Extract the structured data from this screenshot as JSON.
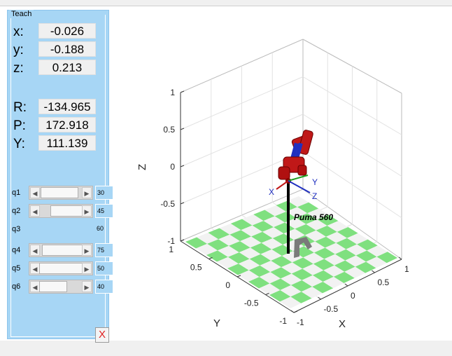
{
  "panel": {
    "title": "Teach",
    "pos_labels": {
      "x": "x:",
      "y": "y:",
      "z": "z:"
    },
    "pos_values": {
      "x": "-0.026",
      "y": "-0.188",
      "z": "0.213"
    },
    "rpy_labels": {
      "r": "R:",
      "p": "P:",
      "y": "Y:"
    },
    "rpy_values": {
      "r": "-134.965",
      "p": "172.918",
      "y": "111.139"
    },
    "joints": [
      {
        "label": "q1",
        "value": "30"
      },
      {
        "label": "q2",
        "value": "45"
      },
      {
        "label": "q3",
        "value": "60"
      },
      {
        "label": "q4",
        "value": "75"
      },
      {
        "label": "q5",
        "value": "50"
      },
      {
        "label": "q6",
        "value": "40"
      }
    ],
    "close_label": "X"
  },
  "plot": {
    "robot_name": "Puma 560",
    "z_axis_label": "Z",
    "y_axis_label": "Y",
    "x_axis_label": "X",
    "z_ticks": [
      "1",
      "0.5",
      "0",
      "-0.5",
      "-1"
    ],
    "y_ticks": [
      "1",
      "0.5",
      "0",
      "-0.5",
      "-1"
    ],
    "x_ticks": [
      "-1",
      "-0.5",
      "0",
      "0.5",
      "1"
    ],
    "frame_labels": {
      "x": "X",
      "y": "Y",
      "z": "Z"
    },
    "floor_color_a": "#7fe07f",
    "floor_color_b": "#f2f2f2",
    "link_color": "#c01818"
  }
}
